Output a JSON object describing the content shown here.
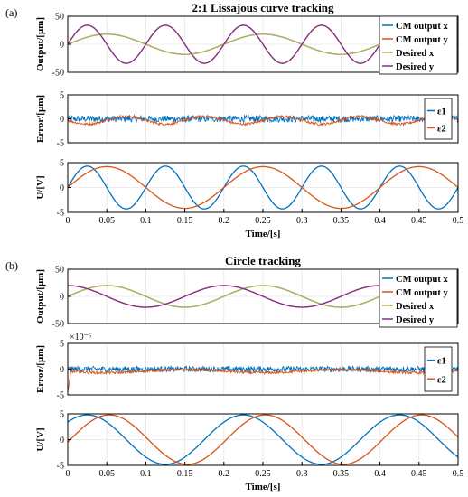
{
  "panel_labels": [
    "(a)",
    "(b)"
  ],
  "chart_data": [
    {
      "type": "line",
      "title": "2:1 Lissajous curve tracking",
      "xlabel": "",
      "ylabel": "Output/[μm]",
      "xlim": [
        0,
        0.5
      ],
      "ylim": [
        -50,
        50
      ],
      "xticks": [],
      "yticks": [
        -50,
        0,
        50
      ],
      "grid": true,
      "legend_position": "top-right",
      "series": [
        {
          "name": "CM output x",
          "color": "#0072BD",
          "type": "sine",
          "amplitude": 18,
          "frequency": 5,
          "phase": 0,
          "offset": 0
        },
        {
          "name": "CM output y",
          "color": "#D95319",
          "type": "sine",
          "amplitude": 34,
          "frequency": 10,
          "phase": 0,
          "offset": 0
        },
        {
          "name": "Desired x",
          "color": "#BFAF4F",
          "type": "sine",
          "amplitude": 18,
          "frequency": 5,
          "phase": 0,
          "offset": 0
        },
        {
          "name": "Desired y",
          "color": "#7E2F8E",
          "type": "sine",
          "amplitude": 34,
          "frequency": 10,
          "phase": 0,
          "offset": 0
        }
      ]
    },
    {
      "type": "line",
      "title": "",
      "xlabel": "",
      "ylabel": "Error/[μm]",
      "xlim": [
        0,
        0.5
      ],
      "ylim": [
        -5,
        5
      ],
      "xticks": [],
      "yticks": [
        -5,
        0,
        5
      ],
      "grid": true,
      "legend_position": "right",
      "series": [
        {
          "name": "ε1",
          "color": "#0072BD",
          "type": "noise",
          "amplitude": 0.0,
          "frequency": 0,
          "phase": 0,
          "offset": 0,
          "noise": 0.7
        },
        {
          "name": "ε2",
          "color": "#D95319",
          "type": "sine",
          "amplitude": 0.8,
          "frequency": 10,
          "phase": 3.14159,
          "offset": -0.3,
          "noise": 0.25
        }
      ]
    },
    {
      "type": "line",
      "title": "",
      "xlabel": "Time/[s]",
      "ylabel": "U/[V]",
      "xlim": [
        0,
        0.5
      ],
      "ylim": [
        -5,
        5
      ],
      "xticks": [
        0,
        0.05,
        0.1,
        0.15,
        0.2,
        0.25,
        0.3,
        0.35,
        0.4,
        0.45,
        0.5
      ],
      "xticklabels": [
        "0",
        "0.05",
        "0.1",
        "0.15",
        "0.2",
        "0.25",
        "0.3",
        "0.35",
        "0.4",
        "0.45",
        "0.5"
      ],
      "yticks": [
        -5,
        0,
        5
      ],
      "grid": true,
      "series": [
        {
          "name": "",
          "color": "#0072BD",
          "type": "sine",
          "amplitude": 4.3,
          "frequency": 10,
          "phase": 0,
          "offset": 0
        },
        {
          "name": "",
          "color": "#D95319",
          "type": "sine",
          "amplitude": 4.2,
          "frequency": 5,
          "phase": 0,
          "offset": 0
        }
      ]
    },
    {
      "type": "line",
      "title": "Circle tracking",
      "xlabel": "",
      "ylabel": "Output/[μm]",
      "xlim": [
        0,
        0.5
      ],
      "ylim": [
        -50,
        50
      ],
      "xticks": [],
      "yticks": [
        -50,
        0,
        50
      ],
      "grid": true,
      "legend_position": "top-right",
      "series": [
        {
          "name": "CM output x",
          "color": "#0072BD",
          "type": "sine",
          "amplitude": 20,
          "frequency": 5,
          "phase": 0,
          "offset": 0
        },
        {
          "name": "CM output y",
          "color": "#D95319",
          "type": "sine",
          "amplitude": 20,
          "frequency": 5,
          "phase": 1.5708,
          "offset": 0
        },
        {
          "name": "Desired x",
          "color": "#BFAF4F",
          "type": "sine",
          "amplitude": 20,
          "frequency": 5,
          "phase": 0,
          "offset": 0
        },
        {
          "name": "Desired y",
          "color": "#7E2F8E",
          "type": "sine",
          "amplitude": 20,
          "frequency": 5,
          "phase": 1.5708,
          "offset": 0
        }
      ]
    },
    {
      "type": "line",
      "title": "",
      "xlabel": "",
      "ylabel": "Error/[μm]",
      "ylabel_scale": "×10⁻⁶",
      "xlim": [
        0,
        0.5
      ],
      "ylim": [
        -5,
        5
      ],
      "xticks": [],
      "yticks": [
        -5,
        0,
        5
      ],
      "grid": true,
      "legend_position": "right",
      "series": [
        {
          "name": "ε1",
          "color": "#0072BD",
          "type": "noise",
          "amplitude": 0.0,
          "frequency": 0,
          "phase": 0,
          "offset": 0,
          "noise": 0.55
        },
        {
          "name": "ε2",
          "color": "#D95319",
          "type": "sine",
          "amplitude": 0.3,
          "frequency": 5,
          "phase": 3.14159,
          "offset": -0.4,
          "noise": 0.25,
          "spike": -4.5
        }
      ]
    },
    {
      "type": "line",
      "title": "",
      "xlabel": "Time/[s]",
      "ylabel": "U/[V]",
      "xlim": [
        0,
        0.5
      ],
      "ylim": [
        -5,
        5
      ],
      "xticks": [
        0,
        0.05,
        0.1,
        0.15,
        0.2,
        0.25,
        0.3,
        0.35,
        0.4,
        0.45,
        0.5
      ],
      "xticklabels": [
        "0",
        "0.05",
        "0.1",
        "0.15",
        "0.2",
        "0.25",
        "0.3",
        "0.35",
        "0.4",
        "0.45",
        "0.5"
      ],
      "yticks": [
        -5,
        0,
        5
      ],
      "grid": true,
      "series": [
        {
          "name": "",
          "color": "#0072BD",
          "type": "sine",
          "amplitude": 4.8,
          "frequency": 5,
          "phase": 0.785,
          "offset": 0
        },
        {
          "name": "",
          "color": "#D95319",
          "type": "sine",
          "amplitude": 4.8,
          "frequency": 5,
          "phase": -0.1,
          "offset": 0
        }
      ]
    }
  ]
}
